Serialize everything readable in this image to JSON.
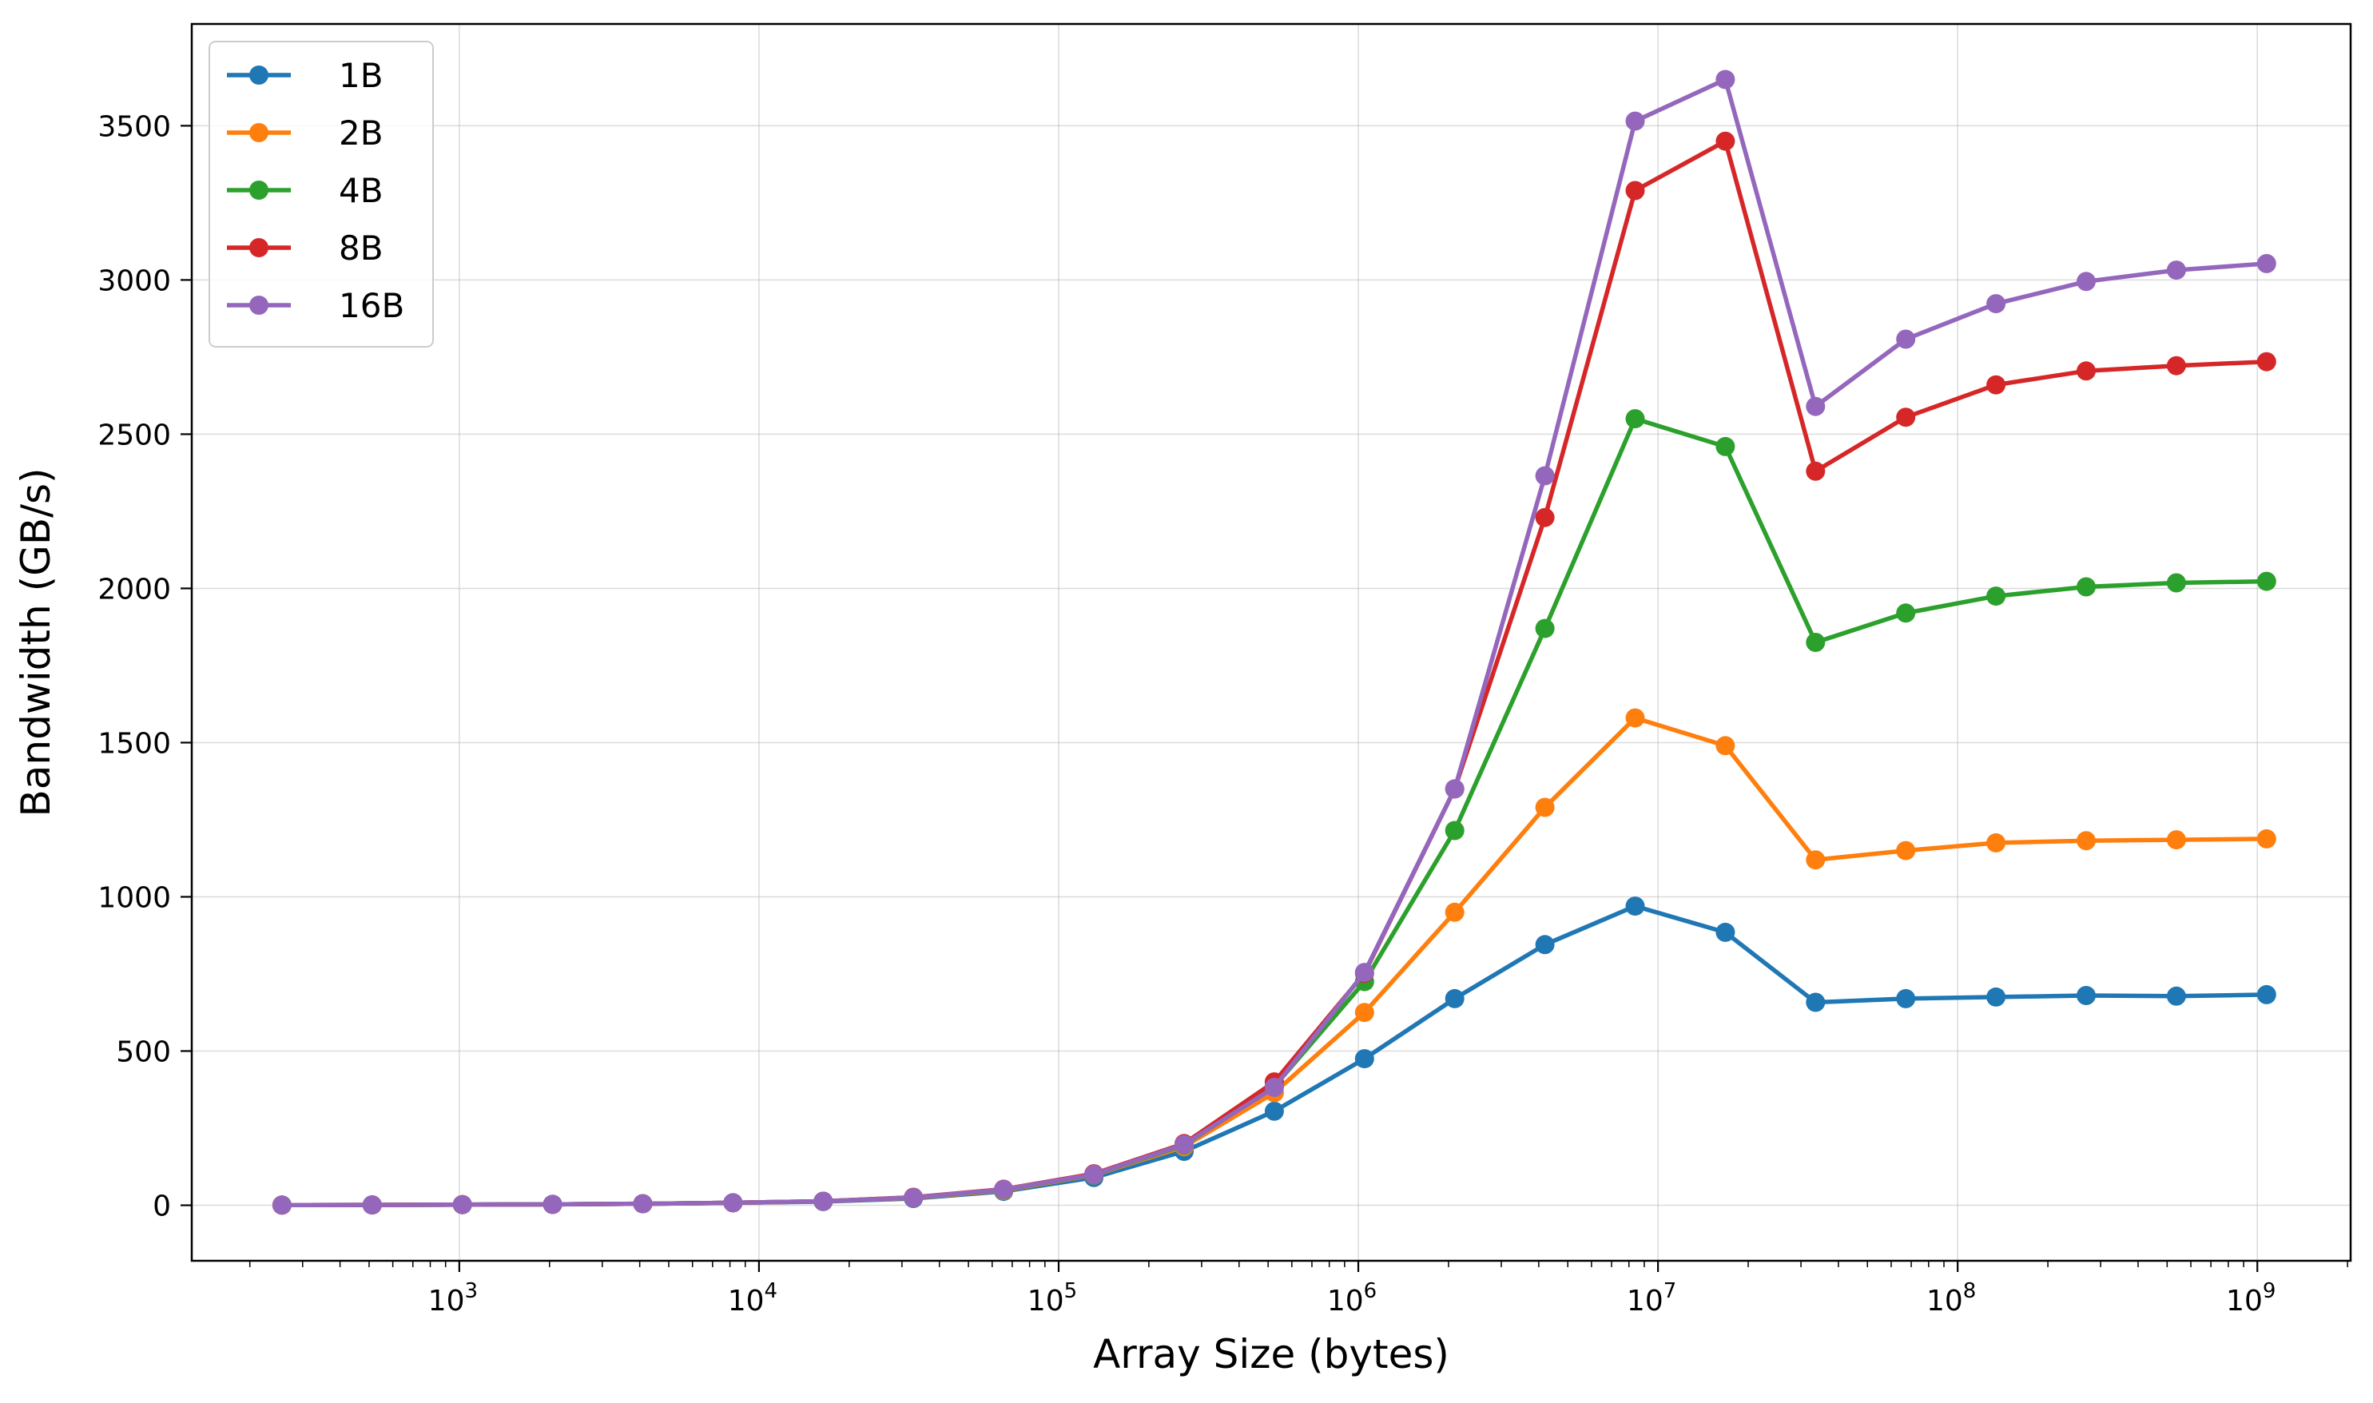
{
  "chart_data": {
    "type": "line",
    "xlabel": "Array Size (bytes)",
    "ylabel": "Bandwidth (GB/s)",
    "xscale": "log",
    "xlim": [
      128,
      2048000000
    ],
    "ylim": [
      -180,
      3830
    ],
    "grid": true,
    "legend_position": "top-left",
    "x": [
      256,
      512,
      1024,
      2048,
      4096,
      8192,
      16384,
      32768,
      65536,
      131072,
      262144,
      524288,
      1048576,
      2097152,
      4194304,
      8388608,
      16777216,
      33554432,
      67108864,
      134217728,
      268435456,
      536870912,
      1073741824
    ],
    "y_ticks": [
      "0",
      "500",
      "1000",
      "1500",
      "2000",
      "2500",
      "3000",
      "3500"
    ],
    "x_ticks": [
      {
        "base": "10",
        "exp": "3"
      },
      {
        "base": "10",
        "exp": "4"
      },
      {
        "base": "10",
        "exp": "5"
      },
      {
        "base": "10",
        "exp": "6"
      },
      {
        "base": "10",
        "exp": "7"
      },
      {
        "base": "10",
        "exp": "8"
      },
      {
        "base": "10",
        "exp": "9"
      }
    ],
    "series": [
      {
        "name": "1B",
        "color": "#1f77b4",
        "values": [
          0.5,
          1,
          2,
          3,
          5,
          8,
          12,
          22,
          45,
          90,
          175,
          305,
          475,
          670,
          845,
          970,
          885,
          658,
          670,
          675,
          680,
          678,
          683
        ]
      },
      {
        "name": "2B",
        "color": "#ff7f0e",
        "values": [
          0.5,
          1,
          2,
          3,
          5,
          8,
          13,
          24,
          48,
          98,
          190,
          365,
          625,
          950,
          1290,
          1580,
          1490,
          1120,
          1150,
          1175,
          1182,
          1185,
          1188
        ]
      },
      {
        "name": "4B",
        "color": "#2ca02c",
        "values": [
          0.5,
          1,
          2,
          3,
          5,
          8,
          13,
          25,
          50,
          99,
          195,
          385,
          725,
          1215,
          1870,
          2550,
          2460,
          1825,
          1920,
          1975,
          2005,
          2018,
          2023
        ]
      },
      {
        "name": "8B",
        "color": "#d62728",
        "values": [
          0.5,
          1,
          2,
          3,
          5,
          8,
          13,
          26,
          52,
          102,
          200,
          400,
          752,
          1350,
          2230,
          3290,
          3450,
          2380,
          2555,
          2660,
          2705,
          2722,
          2735
        ]
      },
      {
        "name": "16B",
        "color": "#9467bd",
        "values": [
          0.5,
          1,
          2,
          3,
          5,
          8,
          13,
          25,
          51,
          100,
          197,
          382,
          755,
          1350,
          2365,
          3515,
          3650,
          2590,
          2808,
          2923,
          2995,
          3032,
          3053
        ]
      }
    ]
  }
}
